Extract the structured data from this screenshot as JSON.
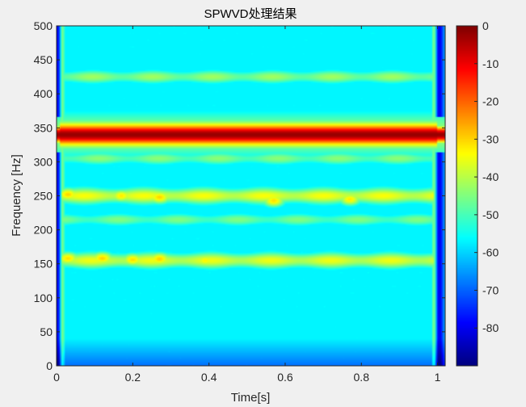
{
  "chart_data": {
    "type": "heatmap",
    "title": "SPWVD处理结果",
    "xlabel": "Time[s]",
    "ylabel": "Frequency [Hz]",
    "xlim": [
      0,
      1.02
    ],
    "ylim": [
      0,
      500
    ],
    "x_ticks": [
      0,
      0.2,
      0.4,
      0.6,
      0.8,
      1
    ],
    "x_tick_labels": [
      "0",
      "0.2",
      "0.4",
      "0.6",
      "0.8",
      "1"
    ],
    "y_ticks": [
      0,
      50,
      100,
      150,
      200,
      250,
      300,
      350,
      400,
      450,
      500
    ],
    "y_tick_labels": [
      "0",
      "50",
      "100",
      "150",
      "200",
      "250",
      "300",
      "350",
      "400",
      "450",
      "500"
    ],
    "colormap": "jet",
    "colorbar": {
      "clim": [
        -90,
        0
      ],
      "ticks": [
        0,
        -10,
        -20,
        -30,
        -40,
        -50,
        -60,
        -70,
        -80
      ],
      "tick_labels": [
        "0",
        "-10",
        "-20",
        "-30",
        "-40",
        "-50",
        "-60",
        "-70",
        "-80"
      ]
    },
    "features": {
      "signal_band": {
        "frequency_hz": 340,
        "level_db": -2,
        "time_range_s": [
          0.01,
          1.0
        ]
      },
      "secondary_bands": [
        {
          "frequency_hz": 250,
          "level_db": -37
        },
        {
          "frequency_hz": 155,
          "level_db": -38
        },
        {
          "frequency_hz": 425,
          "level_db": -45
        },
        {
          "frequency_hz": 305,
          "level_db": -47
        },
        {
          "frequency_hz": 215,
          "level_db": -48
        }
      ],
      "background_level_db": -62,
      "edge_level_db": -80,
      "hot_spots": [
        {
          "t": 0.03,
          "f": 252,
          "level_db": -30
        },
        {
          "t": 0.17,
          "f": 250,
          "level_db": -32
        },
        {
          "t": 0.27,
          "f": 248,
          "level_db": -30
        },
        {
          "t": 0.57,
          "f": 243,
          "level_db": -31
        },
        {
          "t": 0.77,
          "f": 245,
          "level_db": -32
        },
        {
          "t": 0.03,
          "f": 158,
          "level_db": -31
        },
        {
          "t": 0.12,
          "f": 158,
          "level_db": -30
        },
        {
          "t": 0.2,
          "f": 156,
          "level_db": -31
        },
        {
          "t": 0.27,
          "f": 157,
          "level_db": -30
        },
        {
          "t": 0.39,
          "f": 155,
          "level_db": -33
        }
      ]
    }
  }
}
